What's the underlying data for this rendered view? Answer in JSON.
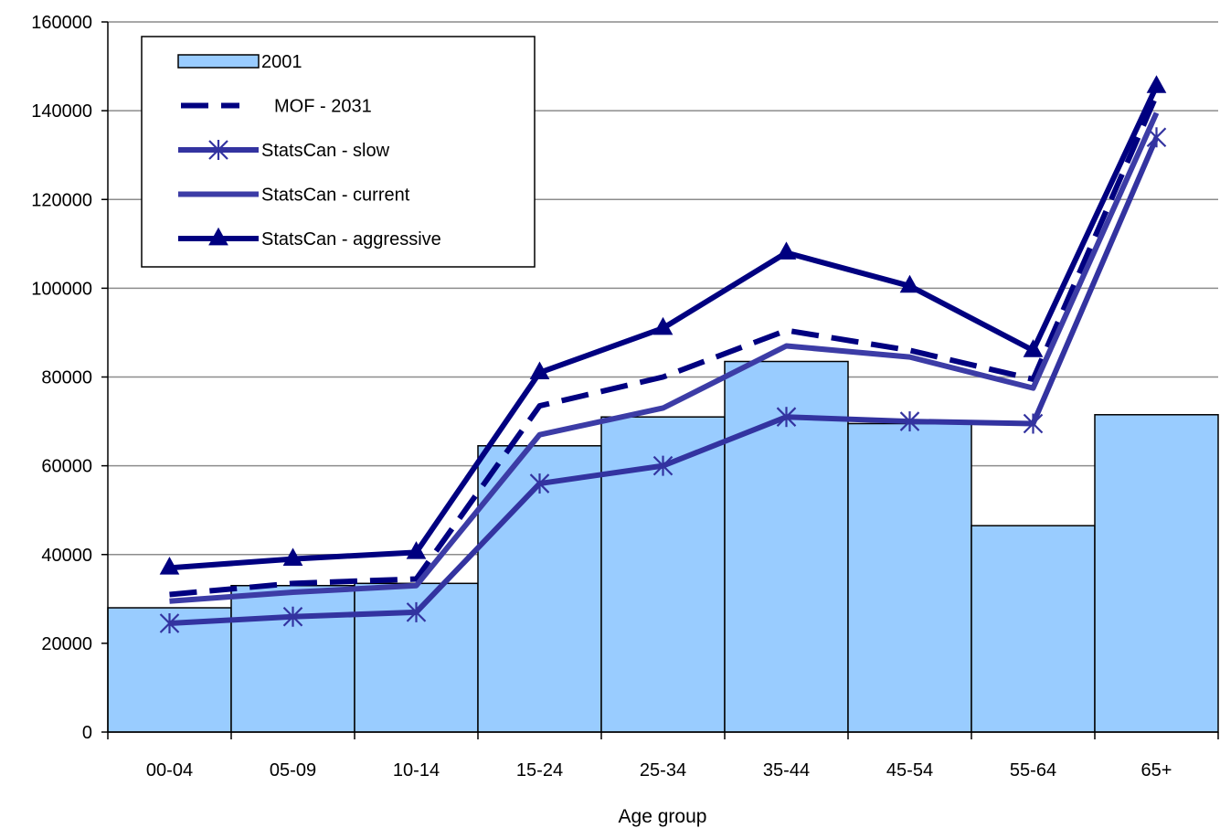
{
  "chart_data": {
    "type": "bar",
    "title": "",
    "xlabel": "Age group",
    "ylabel": "",
    "ylim": [
      0,
      160000
    ],
    "yticks": [
      "0",
      "20000",
      "40000",
      "60000",
      "80000",
      "100000",
      "120000",
      "140000",
      "160000"
    ],
    "grid": true,
    "legend_position": "top-left",
    "categories": [
      "00-04",
      "05-09",
      "10-14",
      "15-24",
      "25-34",
      "35-44",
      "45-54",
      "55-64",
      "65+"
    ],
    "series": [
      {
        "name": "2001",
        "kind": "bar",
        "color": "#99ccff",
        "values": [
          28000,
          33000,
          33500,
          64500,
          71000,
          83500,
          69500,
          46500,
          71500
        ]
      },
      {
        "name": "MOF - 2031",
        "kind": "line",
        "style": "dashed",
        "marker": "none",
        "color": "#000080",
        "values": [
          31000,
          33500,
          34500,
          73500,
          80000,
          90500,
          86000,
          79500,
          143500
        ]
      },
      {
        "name": "StatsCan - slow",
        "kind": "line",
        "style": "solid",
        "marker": "asterisk",
        "color": "#3333a0",
        "values": [
          24500,
          26000,
          27000,
          56000,
          60000,
          71000,
          70000,
          69500,
          134000
        ]
      },
      {
        "name": "StatsCan - current",
        "kind": "line",
        "style": "solid",
        "marker": "none",
        "color": "#3c3ca6",
        "values": [
          29500,
          31500,
          33000,
          67000,
          73000,
          87000,
          84500,
          77500,
          139500
        ]
      },
      {
        "name": "StatsCan - aggressive",
        "kind": "line",
        "style": "solid",
        "marker": "triangle",
        "color": "#000080",
        "values": [
          37000,
          39000,
          40500,
          81000,
          91000,
          108000,
          100500,
          86000,
          145500
        ]
      }
    ]
  }
}
